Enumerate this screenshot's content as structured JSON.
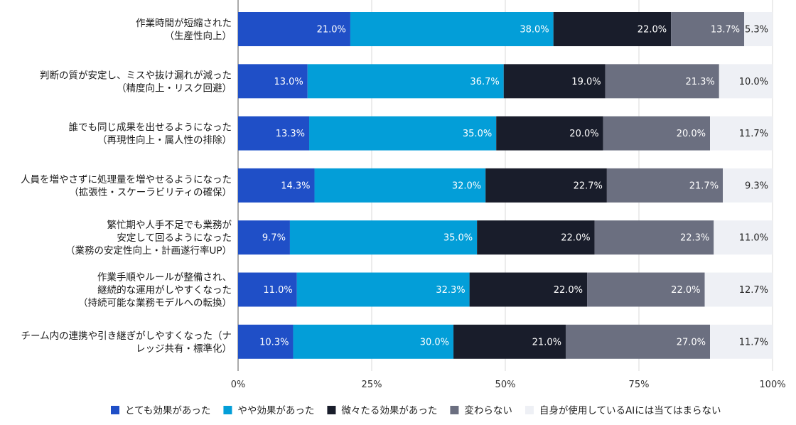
{
  "chart_data": {
    "type": "bar",
    "orientation": "horizontal",
    "stacked": true,
    "title": "",
    "xlabel": "",
    "ylabel": "",
    "xlim": [
      0,
      100
    ],
    "xticks": [
      "0%",
      "25%",
      "50%",
      "75%",
      "100%"
    ],
    "grid": true,
    "legend_position": "bottom",
    "categories": [
      [
        "作業時間が短縮された",
        "（生産性向上）"
      ],
      [
        "判断の質が安定し、ミスや抜け漏れが減った",
        "（精度向上・リスク回避）"
      ],
      [
        "誰でも同じ成果を出せるようになった",
        "（再現性向上・属人性の排除）"
      ],
      [
        "人員を増やさずに処理量を増やせるようになった",
        "（拡張性・スケーラビリティの確保）"
      ],
      [
        "繁忙期や人手不足でも業務が",
        "安定して回るようになった",
        "（業務の安定性向上・計画遂行率UP）"
      ],
      [
        "作業手順やルールが整備され、",
        "継続的な運用がしやすくなった",
        "（持続可能な業務モデルへの転換）"
      ],
      [
        "チーム内の連携や引き継ぎがしやすくなった（ナ",
        "レッジ共有・標準化）"
      ]
    ],
    "series": [
      {
        "name": "とても効果があった",
        "color": "#1f4fc7",
        "label_color": "#ffffff",
        "values": [
          21.0,
          13.0,
          13.3,
          14.3,
          9.7,
          11.0,
          10.3
        ]
      },
      {
        "name": "やや効果があった",
        "color": "#039ed8",
        "label_color": "#ffffff",
        "values": [
          38.0,
          36.7,
          35.0,
          32.0,
          35.0,
          32.3,
          30.0
        ]
      },
      {
        "name": "微々たる効果があった",
        "color": "#191d2b",
        "label_color": "#ffffff",
        "values": [
          22.0,
          19.0,
          20.0,
          22.7,
          22.0,
          22.0,
          21.0
        ]
      },
      {
        "name": "変わらない",
        "color": "#6b6f80",
        "label_color": "#ffffff",
        "values": [
          13.7,
          21.3,
          20.0,
          21.7,
          22.3,
          22.0,
          27.0
        ]
      },
      {
        "name": "自身が使用しているAIには当てはまらない",
        "color": "#eef0f5",
        "label_color": "#222222",
        "values": [
          5.3,
          10.0,
          11.7,
          9.3,
          11.0,
          12.7,
          11.7
        ]
      }
    ]
  }
}
